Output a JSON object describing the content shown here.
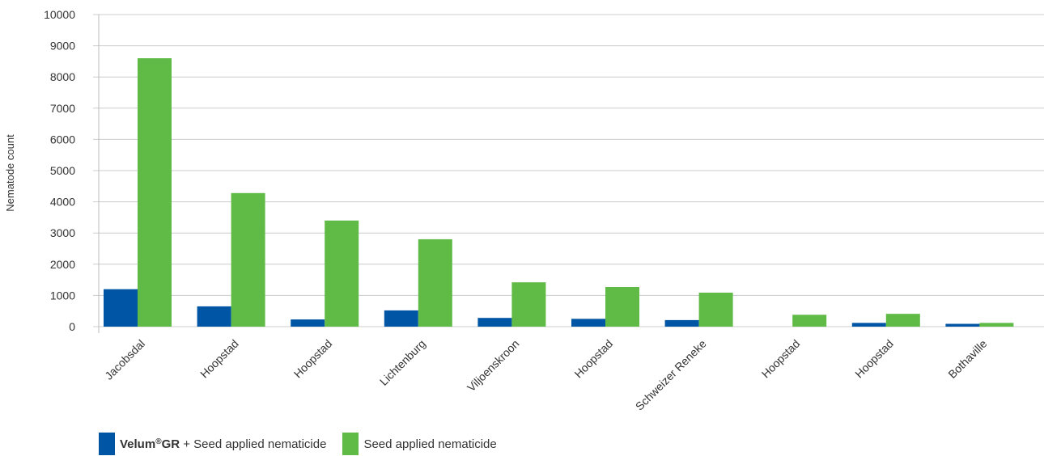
{
  "chart_data": {
    "type": "bar",
    "ylabel": "Nematode count",
    "ylim": [
      0,
      10000
    ],
    "yticks": [
      "0",
      "1000",
      "2000",
      "3000",
      "4000",
      "5000",
      "6000",
      "7000",
      "8000",
      "9000",
      "10000"
    ],
    "grid": true,
    "legend_position": "bottom-left",
    "categories": [
      "Jacobsdal",
      "Hoopstad",
      "Hoopstad",
      "Lichtenburg",
      "Viljoenskroon",
      "Hoopstad",
      "Schweizer Reneke",
      "Hoopstad",
      "Hoopstad",
      "Bothaville"
    ],
    "series": [
      {
        "name": "Velum®GR + Seed applied nematicide",
        "color": "#0055a4",
        "values": [
          1200,
          650,
          230,
          520,
          280,
          250,
          210,
          0,
          120,
          90
        ]
      },
      {
        "name": "Seed applied nematicide",
        "color": "#5fba46",
        "values": [
          8600,
          4280,
          3400,
          2800,
          1420,
          1270,
          1090,
          380,
          410,
          120
        ]
      }
    ]
  },
  "legend": {
    "series1_brand": "Velum",
    "series1_reg": "®",
    "series1_brand_suffix": "GR",
    "series1_rest": " + Seed applied nematicide",
    "series2_label": "Seed applied nematicide"
  }
}
